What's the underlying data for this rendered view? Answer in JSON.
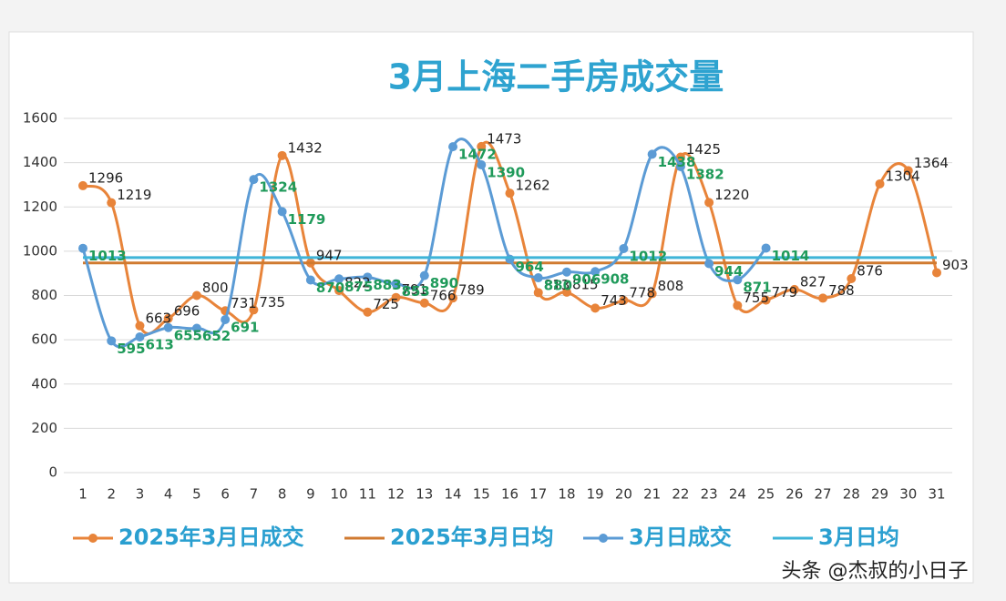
{
  "chart_data": {
    "type": "line",
    "title": "3月上海二手房成交量",
    "categories": [
      "1",
      "2",
      "3",
      "4",
      "5",
      "6",
      "7",
      "8",
      "9",
      "10",
      "11",
      "12",
      "13",
      "14",
      "15",
      "16",
      "17",
      "18",
      "19",
      "20",
      "21",
      "22",
      "23",
      "24",
      "25",
      "26",
      "27",
      "28",
      "29",
      "30",
      "31"
    ],
    "series": [
      {
        "name": "2025年3月日成交",
        "color": "#e8843a",
        "markers": true,
        "data_labels": true,
        "label_color": "#222222",
        "values": [
          1296,
          1219,
          663,
          696,
          800,
          731,
          735,
          1432,
          947,
          822,
          725,
          791,
          766,
          789,
          1473,
          1262,
          813,
          815,
          743,
          778,
          808,
          1425,
          1220,
          755,
          779,
          827,
          788,
          876,
          1304,
          1364,
          903
        ]
      },
      {
        "name": "2025年3月日均",
        "color": "#d07a30",
        "markers": false,
        "data_labels": false,
        "values": [
          947,
          947,
          947,
          947,
          947,
          947,
          947,
          947,
          947,
          947,
          947,
          947,
          947,
          947,
          947,
          947,
          947,
          947,
          947,
          947,
          947,
          947,
          947,
          947,
          947,
          947,
          947,
          947,
          947,
          947,
          947
        ]
      },
      {
        "name": "3月日成交",
        "color": "#5b9bd5",
        "markers": true,
        "data_labels": true,
        "label_color": "#1f9a5a",
        "values": [
          1013,
          595,
          613,
          655,
          652,
          691,
          1324,
          1179,
          870,
          875,
          883,
          853,
          890,
          1472,
          1390,
          964,
          880,
          906,
          908,
          1012,
          1438,
          1382,
          944,
          871,
          1014,
          null,
          null,
          null,
          null,
          null,
          null
        ]
      },
      {
        "name": "3月日均",
        "color": "#3fb4d8",
        "markers": false,
        "data_labels": false,
        "values": [
          971,
          971,
          971,
          971,
          971,
          971,
          971,
          971,
          971,
          971,
          971,
          971,
          971,
          971,
          971,
          971,
          971,
          971,
          971,
          971,
          971,
          971,
          971,
          971,
          971,
          971,
          971,
          971,
          971,
          971,
          971
        ]
      }
    ],
    "ylim": [
      0,
      1600
    ],
    "yticks": [
      0,
      200,
      400,
      600,
      800,
      1000,
      1200,
      1400,
      1600
    ],
    "grid": true,
    "smooth": true,
    "watermark": "头条 @杰叔的小日子"
  }
}
